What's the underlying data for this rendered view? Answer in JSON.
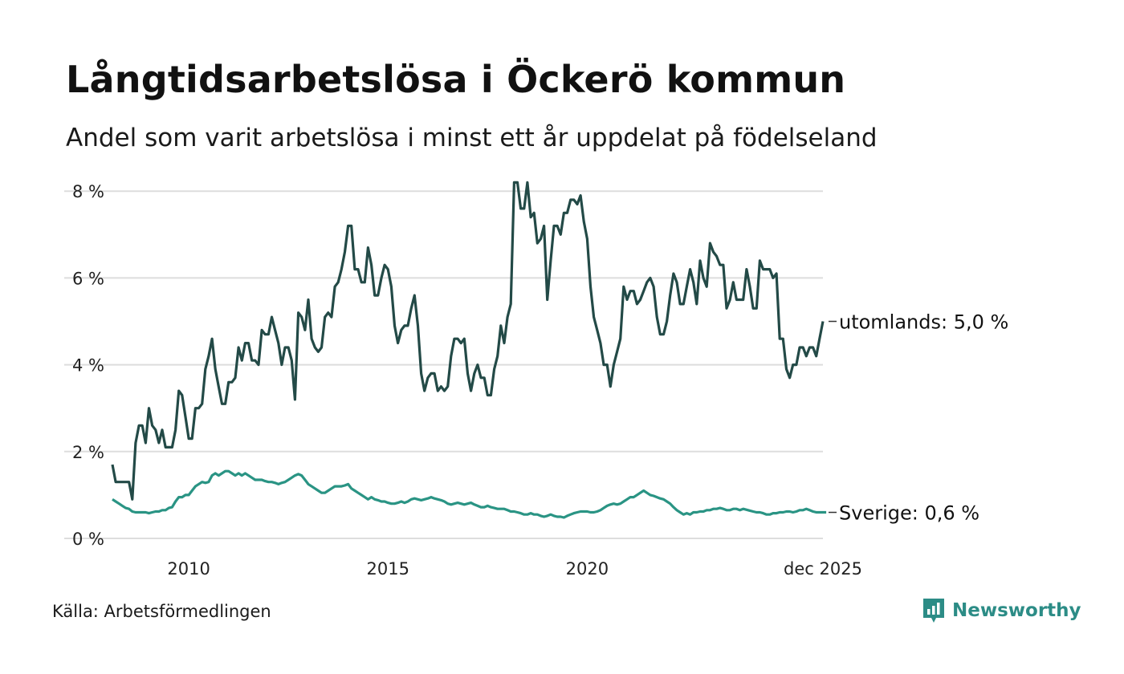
{
  "title": "Långtidsarbetslösa i Öckerö kommun",
  "subtitle": "Andel som varit arbetslösa i minst ett år uppdelat på födelseland",
  "source": "Källa: Arbetsförmedlingen",
  "brand": {
    "name": "Newsworthy",
    "color": "#2c8c86",
    "icon": "newsworthy-logo-icon"
  },
  "colors": {
    "utomlands": "#234a47",
    "sverige": "#2a9484",
    "grid": "#dddddd"
  },
  "chart_data": {
    "type": "line",
    "title": "Långtidsarbetslösa i Öckerö kommun",
    "xlabel": "",
    "ylabel": "",
    "unit": "%",
    "x_start": 2008.083,
    "x_end": 2025.917,
    "points_per_year": 12,
    "ylim": [
      0,
      8.3
    ],
    "yticks": [
      0,
      2,
      4,
      6,
      8
    ],
    "ytick_labels": [
      "0 %",
      "2 %",
      "4 %",
      "6 %",
      "8 %"
    ],
    "xticks": [
      2010,
      2015,
      2020,
      2025.917
    ],
    "xtick_labels": [
      "2010",
      "2015",
      "2020",
      "dec 2025"
    ],
    "grid": true,
    "series": [
      {
        "name": "utomlands",
        "end_label": "utomlands: 5,0 %",
        "values": [
          1.7,
          1.3,
          1.3,
          1.3,
          1.3,
          1.3,
          0.9,
          2.2,
          2.6,
          2.6,
          2.2,
          3.0,
          2.6,
          2.5,
          2.2,
          2.5,
          2.1,
          2.1,
          2.1,
          2.5,
          3.4,
          3.3,
          2.8,
          2.3,
          2.3,
          3.0,
          3.0,
          3.1,
          3.9,
          4.2,
          4.6,
          3.9,
          3.5,
          3.1,
          3.1,
          3.6,
          3.6,
          3.7,
          4.4,
          4.1,
          4.5,
          4.5,
          4.1,
          4.1,
          4.0,
          4.8,
          4.7,
          4.7,
          5.1,
          4.8,
          4.5,
          4.0,
          4.4,
          4.4,
          4.1,
          3.2,
          5.2,
          5.1,
          4.8,
          5.5,
          4.6,
          4.4,
          4.3,
          4.4,
          5.1,
          5.2,
          5.1,
          5.8,
          5.9,
          6.2,
          6.6,
          7.2,
          7.2,
          6.2,
          6.2,
          5.9,
          5.9,
          6.7,
          6.3,
          5.6,
          5.6,
          6.0,
          6.3,
          6.2,
          5.8,
          4.9,
          4.5,
          4.8,
          4.9,
          4.9,
          5.3,
          5.6,
          4.9,
          3.8,
          3.4,
          3.7,
          3.8,
          3.8,
          3.4,
          3.5,
          3.4,
          3.5,
          4.2,
          4.6,
          4.6,
          4.5,
          4.6,
          3.8,
          3.4,
          3.8,
          4.0,
          3.7,
          3.7,
          3.3,
          3.3,
          3.9,
          4.2,
          4.9,
          4.5,
          5.1,
          5.4,
          8.2,
          8.2,
          7.6,
          7.6,
          8.2,
          7.4,
          7.5,
          6.8,
          6.9,
          7.2,
          5.5,
          6.4,
          7.2,
          7.2,
          7.0,
          7.5,
          7.5,
          7.8,
          7.8,
          7.7,
          7.9,
          7.3,
          6.9,
          5.8,
          5.1,
          4.8,
          4.5,
          4.0,
          4.0,
          3.5,
          4.0,
          4.3,
          4.6,
          5.8,
          5.5,
          5.7,
          5.7,
          5.4,
          5.5,
          5.7,
          5.9,
          6.0,
          5.8,
          5.1,
          4.7,
          4.7,
          5.0,
          5.6,
          6.1,
          5.9,
          5.4,
          5.4,
          5.8,
          6.2,
          5.9,
          5.4,
          6.4,
          6.0,
          5.8,
          6.8,
          6.6,
          6.5,
          6.3,
          6.3,
          5.3,
          5.5,
          5.9,
          5.5,
          5.5,
          5.5,
          6.2,
          5.8,
          5.3,
          5.3,
          6.4,
          6.2,
          6.2,
          6.2,
          6.0,
          6.1,
          4.6,
          4.6,
          3.9,
          3.7,
          4.0,
          4.0,
          4.4,
          4.4,
          4.2,
          4.4,
          4.4,
          4.2,
          4.6,
          5.0
        ]
      },
      {
        "name": "Sverige",
        "end_label": "Sverige: 0,6 %",
        "values": [
          0.9,
          0.85,
          0.8,
          0.75,
          0.7,
          0.68,
          0.62,
          0.6,
          0.6,
          0.6,
          0.6,
          0.58,
          0.6,
          0.62,
          0.62,
          0.65,
          0.65,
          0.7,
          0.72,
          0.85,
          0.95,
          0.95,
          1.0,
          1.0,
          1.1,
          1.2,
          1.25,
          1.3,
          1.28,
          1.3,
          1.45,
          1.5,
          1.45,
          1.5,
          1.55,
          1.55,
          1.5,
          1.45,
          1.5,
          1.45,
          1.5,
          1.45,
          1.4,
          1.35,
          1.35,
          1.35,
          1.32,
          1.3,
          1.3,
          1.28,
          1.25,
          1.28,
          1.3,
          1.35,
          1.4,
          1.45,
          1.48,
          1.45,
          1.35,
          1.25,
          1.2,
          1.15,
          1.1,
          1.05,
          1.05,
          1.1,
          1.15,
          1.2,
          1.2,
          1.2,
          1.22,
          1.25,
          1.15,
          1.1,
          1.05,
          1.0,
          0.95,
          0.9,
          0.95,
          0.9,
          0.88,
          0.85,
          0.85,
          0.82,
          0.8,
          0.8,
          0.82,
          0.85,
          0.82,
          0.85,
          0.9,
          0.92,
          0.9,
          0.88,
          0.9,
          0.92,
          0.95,
          0.92,
          0.9,
          0.88,
          0.85,
          0.8,
          0.78,
          0.8,
          0.82,
          0.8,
          0.78,
          0.8,
          0.82,
          0.78,
          0.75,
          0.72,
          0.72,
          0.75,
          0.72,
          0.7,
          0.68,
          0.68,
          0.68,
          0.65,
          0.62,
          0.62,
          0.6,
          0.58,
          0.55,
          0.55,
          0.58,
          0.55,
          0.55,
          0.52,
          0.5,
          0.52,
          0.55,
          0.52,
          0.5,
          0.5,
          0.48,
          0.52,
          0.55,
          0.58,
          0.6,
          0.62,
          0.62,
          0.62,
          0.6,
          0.6,
          0.62,
          0.65,
          0.7,
          0.75,
          0.78,
          0.8,
          0.78,
          0.8,
          0.85,
          0.9,
          0.95,
          0.95,
          1.0,
          1.05,
          1.1,
          1.05,
          1.0,
          0.98,
          0.95,
          0.92,
          0.9,
          0.85,
          0.8,
          0.72,
          0.65,
          0.6,
          0.55,
          0.58,
          0.55,
          0.6,
          0.6,
          0.62,
          0.62,
          0.65,
          0.65,
          0.68,
          0.68,
          0.7,
          0.68,
          0.65,
          0.65,
          0.68,
          0.68,
          0.65,
          0.68,
          0.66,
          0.64,
          0.62,
          0.6,
          0.6,
          0.58,
          0.55,
          0.55,
          0.58,
          0.58,
          0.6,
          0.6,
          0.62,
          0.62,
          0.6,
          0.62,
          0.65,
          0.65,
          0.68,
          0.65,
          0.62,
          0.6,
          0.6,
          0.6,
          0.6
        ]
      }
    ]
  }
}
